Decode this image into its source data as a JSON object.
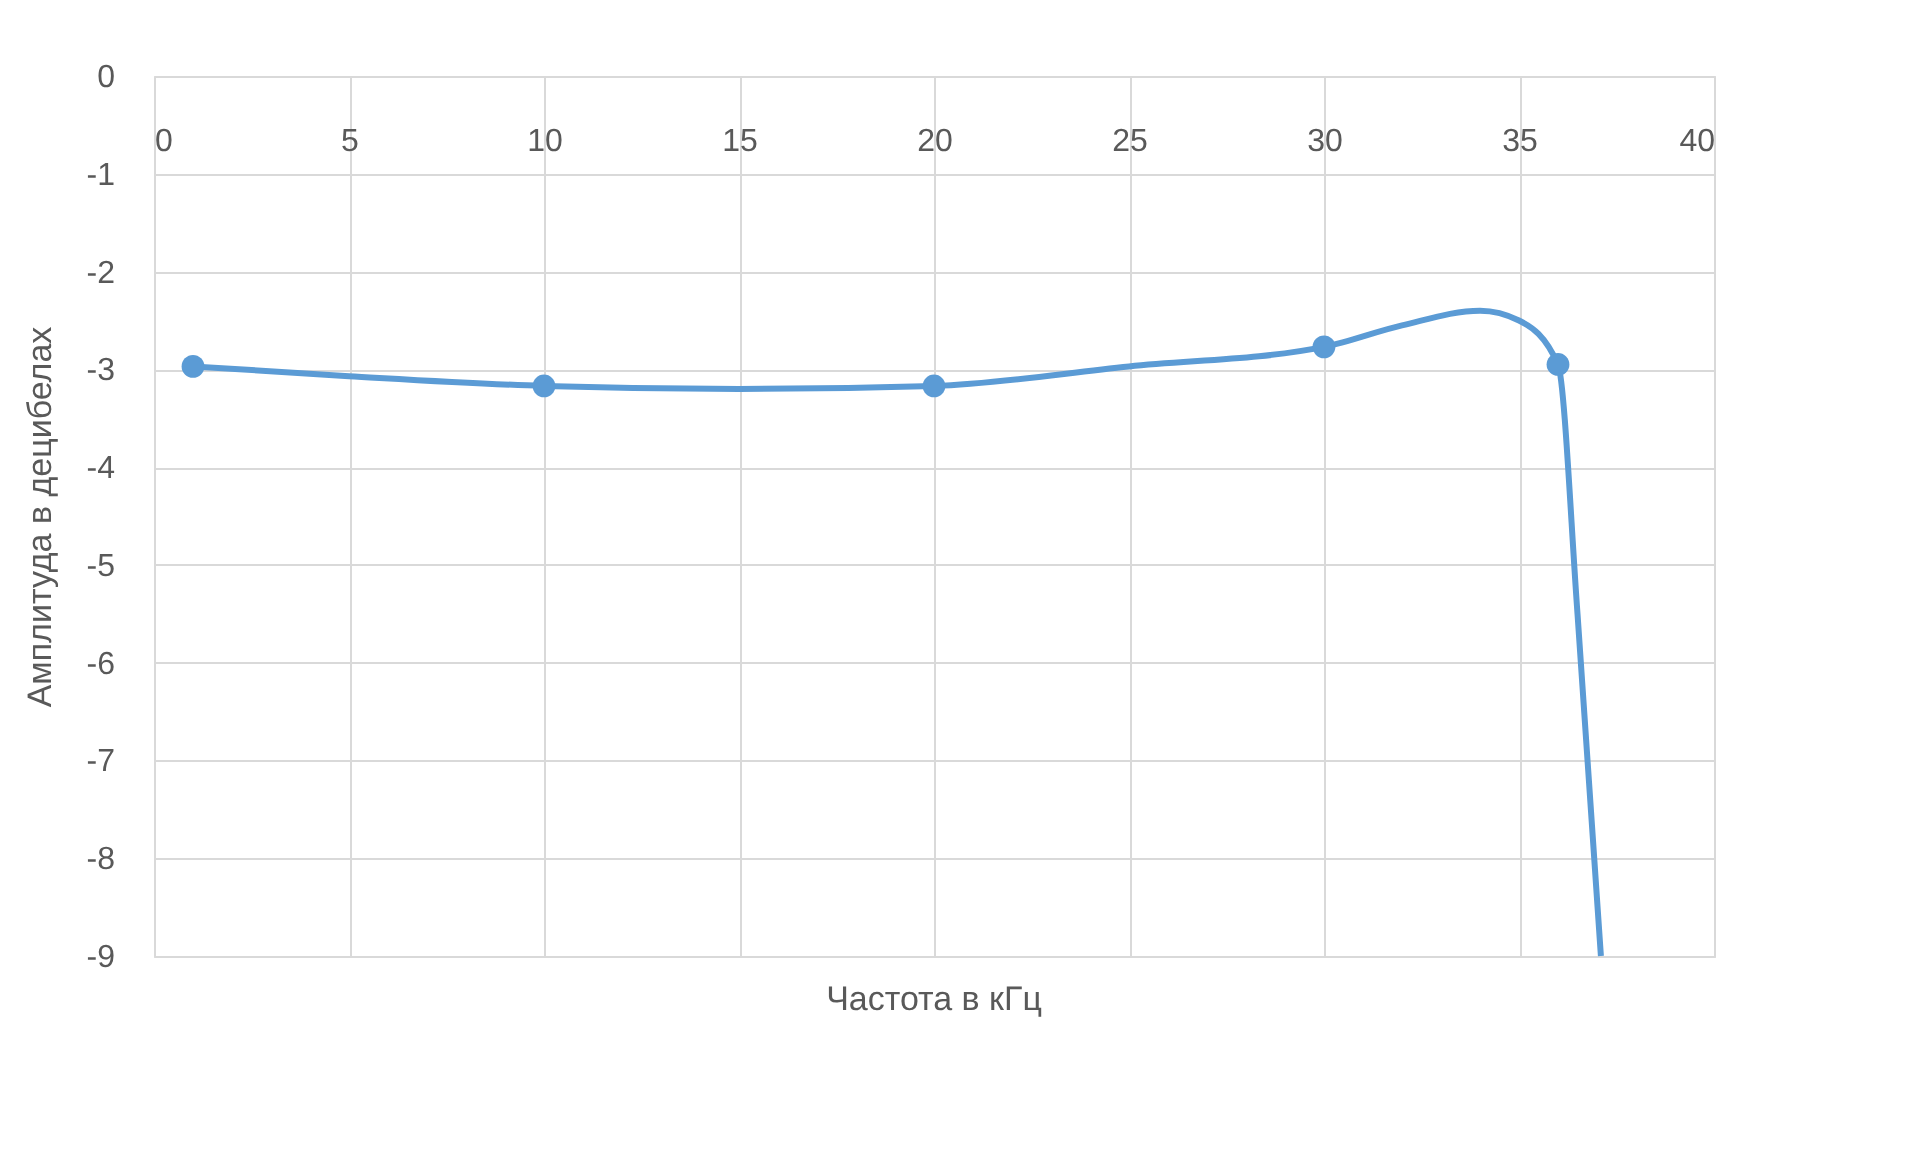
{
  "chart_data": {
    "type": "line",
    "xlabel": "Частота в кГц",
    "ylabel": "Амплитуда в децибелах",
    "series": [
      {
        "color": "#5b9bd5",
        "x": [
          1,
          5,
          10,
          15,
          20,
          25,
          30,
          32,
          34,
          35,
          36,
          36.5,
          37.1
        ],
        "values": [
          -2.97,
          -3.07,
          -3.17,
          -3.2,
          -3.17,
          -2.97,
          -2.77,
          -2.55,
          -2.4,
          -2.5,
          -2.95,
          -5.5,
          -9
        ],
        "marker": "none"
      },
      {
        "type": "scatter",
        "color": "#5b9bd5",
        "x": [
          1,
          10,
          20,
          30,
          36
        ],
        "values": [
          -2.97,
          -3.17,
          -3.17,
          -2.77,
          -2.95
        ],
        "marker": "circle"
      }
    ],
    "xlim": [
      0,
      40
    ],
    "xticks": [
      0,
      5,
      10,
      15,
      20,
      25,
      30,
      35,
      40
    ],
    "ylim": [
      -9,
      0
    ],
    "yticks": [
      0,
      -1,
      -2,
      -3,
      -4,
      -5,
      -6,
      -7,
      -8,
      -9
    ],
    "grid": true,
    "line_style": "solid"
  }
}
